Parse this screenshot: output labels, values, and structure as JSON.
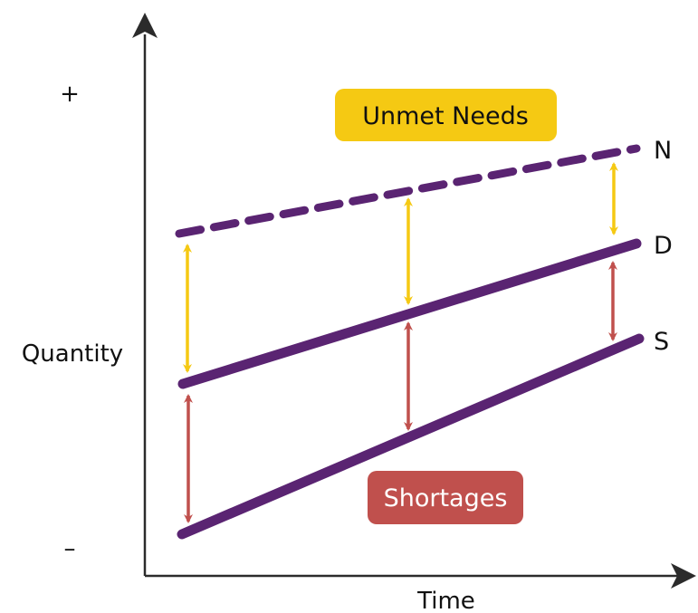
{
  "axes": {
    "x_label": "Time",
    "y_label": "Quantity",
    "y_top_sign": "+",
    "y_bottom_sign": "–"
  },
  "lines": {
    "needs": {
      "label": "N",
      "style": "dashed"
    },
    "demand": {
      "label": "D",
      "style": "solid"
    },
    "supply": {
      "label": "S",
      "style": "solid"
    }
  },
  "badges": {
    "unmet_needs": "Unmet Needs",
    "shortages": "Shortages"
  },
  "colors": {
    "line": "#5a2472",
    "unmet_needs": "#f5c913",
    "shortages": "#c0504d",
    "axis": "#2b2b2b"
  }
}
